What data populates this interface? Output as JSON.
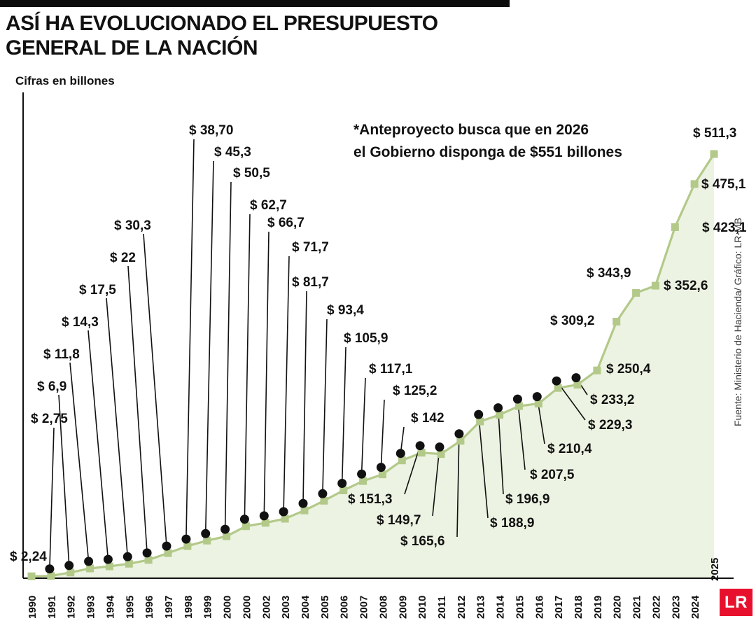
{
  "header": {
    "title_line1": "ASÍ HA EVOLUCIONADO EL PRESUPUESTO",
    "title_line2": "GENERAL DE LA NACIÓN",
    "subtitle": "Cifras en billones"
  },
  "annotation": {
    "line1": "*Anteproyecto busca que en 2026",
    "line2": "el Gobierno disponga de $551 billones"
  },
  "source": "Fuente: Ministerio de Hacienda/ Gráfico: LR-MB",
  "logo": {
    "text": "LR"
  },
  "colors": {
    "line": "#b3c989",
    "marker": "#b3c989",
    "area": "#ecf3e2",
    "dot": "#111111",
    "axis": "#111111",
    "logo_red": "#e8112d"
  },
  "chart_data": {
    "type": "area",
    "title": "ASÍ HA EVOLUCIONADO EL PRESUPUESTO GENERAL DE LA NACIÓN",
    "subtitle": "Cifras en billones",
    "xlabel": "",
    "ylabel": "Cifras en billones",
    "ylim": [
      0,
      540
    ],
    "grid": false,
    "legend": false,
    "x_tick_labels": [
      "1990",
      "1991",
      "1992",
      "1993",
      "1994",
      "1995",
      "1996",
      "1997",
      "1998",
      "1999",
      "2000",
      "2000",
      "2002",
      "2003",
      "2004",
      "2005",
      "2006",
      "2007",
      "2008",
      "2009",
      "2010",
      "2011",
      "2012",
      "2013",
      "2014",
      "2015",
      "2016",
      "2017",
      "2018",
      "2019",
      "2020",
      "2021",
      "2022",
      "2023",
      "2024",
      "2025"
    ],
    "values": [
      2.24,
      2.75,
      6.9,
      11.8,
      14.3,
      17.5,
      22,
      30.3,
      38.7,
      45.3,
      50.5,
      62.7,
      66.7,
      71.7,
      81.7,
      93.4,
      105.9,
      117.1,
      125.2,
      142,
      151.3,
      149.7,
      165.6,
      188.9,
      196.9,
      207.5,
      210.4,
      229.3,
      233.2,
      250.4,
      309.2,
      343.9,
      352.6,
      423.1,
      475.1,
      511.3
    ],
    "point_labels": [
      "$ 2,24",
      "$ 2,75",
      "$ 6,9",
      "$ 11,8",
      "$ 14,3",
      "$ 17,5",
      "$ 22",
      "$ 30,3",
      "$ 38,70",
      "$ 45,3",
      "$ 50,5",
      "$ 62,7",
      "$ 66,7",
      "$ 71,7",
      "$ 81,7",
      "$ 93,4",
      "$ 105,9",
      "$ 117,1",
      "$ 125,2",
      "$ 142",
      "$ 151,3",
      "$ 149,7",
      "$ 165,6",
      "$ 188,9",
      "$ 196,9",
      "$ 207,5",
      "$ 210,4",
      "$ 229,3",
      "$ 233,2",
      "$ 250,4",
      "$ 309,2",
      "$ 343,9",
      "$ 352,6",
      "$ 423,1",
      "$ 475,1",
      "$ 511,3"
    ],
    "annotation": "*Anteproyecto busca que en 2026 el Gobierno disponga de $551 billones",
    "source": "Fuente: Ministerio de Hacienda/ Gráfico: LR-MB"
  }
}
